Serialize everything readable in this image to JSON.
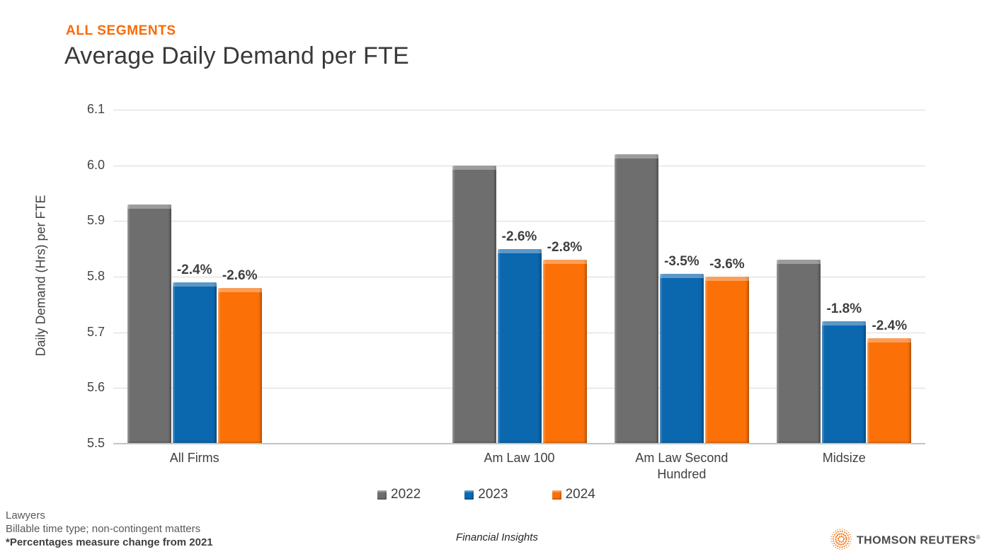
{
  "header": {
    "eyebrow": "ALL SEGMENTS",
    "title": "Average Daily Demand per FTE"
  },
  "chart_data": {
    "type": "bar",
    "title": "Average Daily Demand per FTE",
    "xlabel": "",
    "ylabel": "Daily Demand (Hrs) per FTE",
    "ylim": [
      5.5,
      6.1
    ],
    "yticks": [
      "6.1",
      "6.0",
      "5.9",
      "5.8",
      "5.7",
      "5.6",
      "5.5"
    ],
    "grid": true,
    "legend_position": "bottom",
    "categories": [
      "All Firms",
      "Am Law 100",
      "Am Law Second\nHundred",
      "Midsize"
    ],
    "series": [
      {
        "name": "2022",
        "color": "#6E6E6E",
        "values": [
          5.93,
          6.0,
          6.02,
          5.83
        ],
        "bar_labels": [
          "",
          "",
          "",
          ""
        ]
      },
      {
        "name": "2023",
        "color": "#0B67AE",
        "values": [
          5.79,
          5.85,
          5.805,
          5.72
        ],
        "bar_labels": [
          "-2.4%",
          "-2.6%",
          "-3.5%",
          "-1.8%"
        ]
      },
      {
        "name": "2024",
        "color": "#FB7108",
        "values": [
          5.78,
          5.83,
          5.8,
          5.69
        ],
        "bar_labels": [
          "-2.6%",
          "-2.8%",
          "-3.6%",
          "-2.4%"
        ]
      }
    ],
    "layout": {
      "n_slots": 5,
      "category_slots": [
        0,
        2,
        3,
        4
      ]
    }
  },
  "footnotes": {
    "line1": "Lawyers",
    "line2": "Billable time type; non-contingent matters",
    "line3": "*Percentages measure change from 2021"
  },
  "footer": {
    "center_label": "Financial Insights",
    "brand": "THOMSON REUTERS",
    "brand_reg": "®"
  },
  "colors": {
    "accent_orange": "#F96A05",
    "grid": "#DADADA",
    "axis_line": "#C4C4C4",
    "text_dark": "#404040",
    "brand_icon_orange": "#F47B20"
  },
  "icons": {
    "brand": "thomson-reuters-kinesis-icon"
  }
}
